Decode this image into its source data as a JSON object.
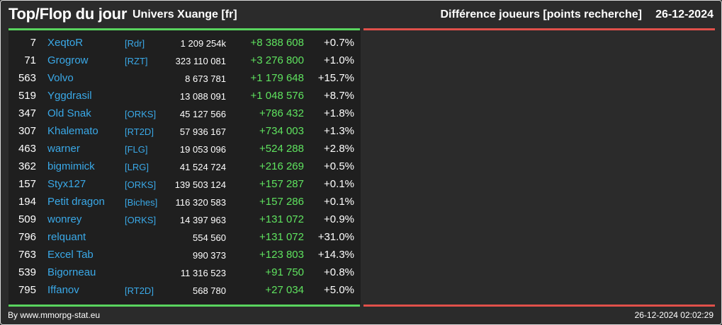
{
  "header": {
    "title": "Top/Flop du jour",
    "universe": "Univers Xuange [fr]",
    "metric": "Différence joueurs [points recherche]",
    "date": "26-12-2024"
  },
  "colors": {
    "top_bar": "#59d45e",
    "flop_bar": "#e0504a",
    "name_color": "#3aa9e8",
    "gain_color": "#5fe35f"
  },
  "top_rows": [
    {
      "rank": "7",
      "name": "XeqtoR",
      "alliance": "[Rdr]",
      "points": "1 209 254k",
      "diff": "+8 388 608",
      "pct": "+0.7%"
    },
    {
      "rank": "71",
      "name": "Grogrow",
      "alliance": "[RZT]",
      "points": "323 110 081",
      "diff": "+3 276 800",
      "pct": "+1.0%"
    },
    {
      "rank": "563",
      "name": "Volvo",
      "alliance": "",
      "points": "8 673 781",
      "diff": "+1 179 648",
      "pct": "+15.7%"
    },
    {
      "rank": "519",
      "name": "Yggdrasil",
      "alliance": "",
      "points": "13 088 091",
      "diff": "+1 048 576",
      "pct": "+8.7%"
    },
    {
      "rank": "347",
      "name": "Old Snak",
      "alliance": "[ORKS]",
      "points": "45 127 566",
      "diff": "+786 432",
      "pct": "+1.8%"
    },
    {
      "rank": "307",
      "name": "Khalemato",
      "alliance": "[RT2D]",
      "points": "57 936 167",
      "diff": "+734 003",
      "pct": "+1.3%"
    },
    {
      "rank": "463",
      "name": "warner",
      "alliance": "[FLG]",
      "points": "19 053 096",
      "diff": "+524 288",
      "pct": "+2.8%"
    },
    {
      "rank": "362",
      "name": "bigmimick",
      "alliance": "[LRG]",
      "points": "41 524 724",
      "diff": "+216 269",
      "pct": "+0.5%"
    },
    {
      "rank": "157",
      "name": "Styx127",
      "alliance": "[ORKS]",
      "points": "139 503 124",
      "diff": "+157 287",
      "pct": "+0.1%"
    },
    {
      "rank": "194",
      "name": "Petit dragon",
      "alliance": "[Biches]",
      "points": "116 320 583",
      "diff": "+157 286",
      "pct": "+0.1%"
    },
    {
      "rank": "509",
      "name": "wonrey",
      "alliance": "[ORKS]",
      "points": "14 397 963",
      "diff": "+131 072",
      "pct": "+0.9%"
    },
    {
      "rank": "796",
      "name": "relquant",
      "alliance": "",
      "points": "554 560",
      "diff": "+131 072",
      "pct": "+31.0%"
    },
    {
      "rank": "763",
      "name": "Excel Tab",
      "alliance": "",
      "points": "990 373",
      "diff": "+123 803",
      "pct": "+14.3%"
    },
    {
      "rank": "539",
      "name": "Bigorneau",
      "alliance": "",
      "points": "11 316 523",
      "diff": "+91 750",
      "pct": "+0.8%"
    },
    {
      "rank": "795",
      "name": "Iffanov",
      "alliance": "[RT2D]",
      "points": "568 780",
      "diff": "+27 034",
      "pct": "+5.0%"
    }
  ],
  "footer": {
    "credit": "By www.mmorpg-stat.eu",
    "timestamp": "26-12-2024 02:02:29"
  }
}
